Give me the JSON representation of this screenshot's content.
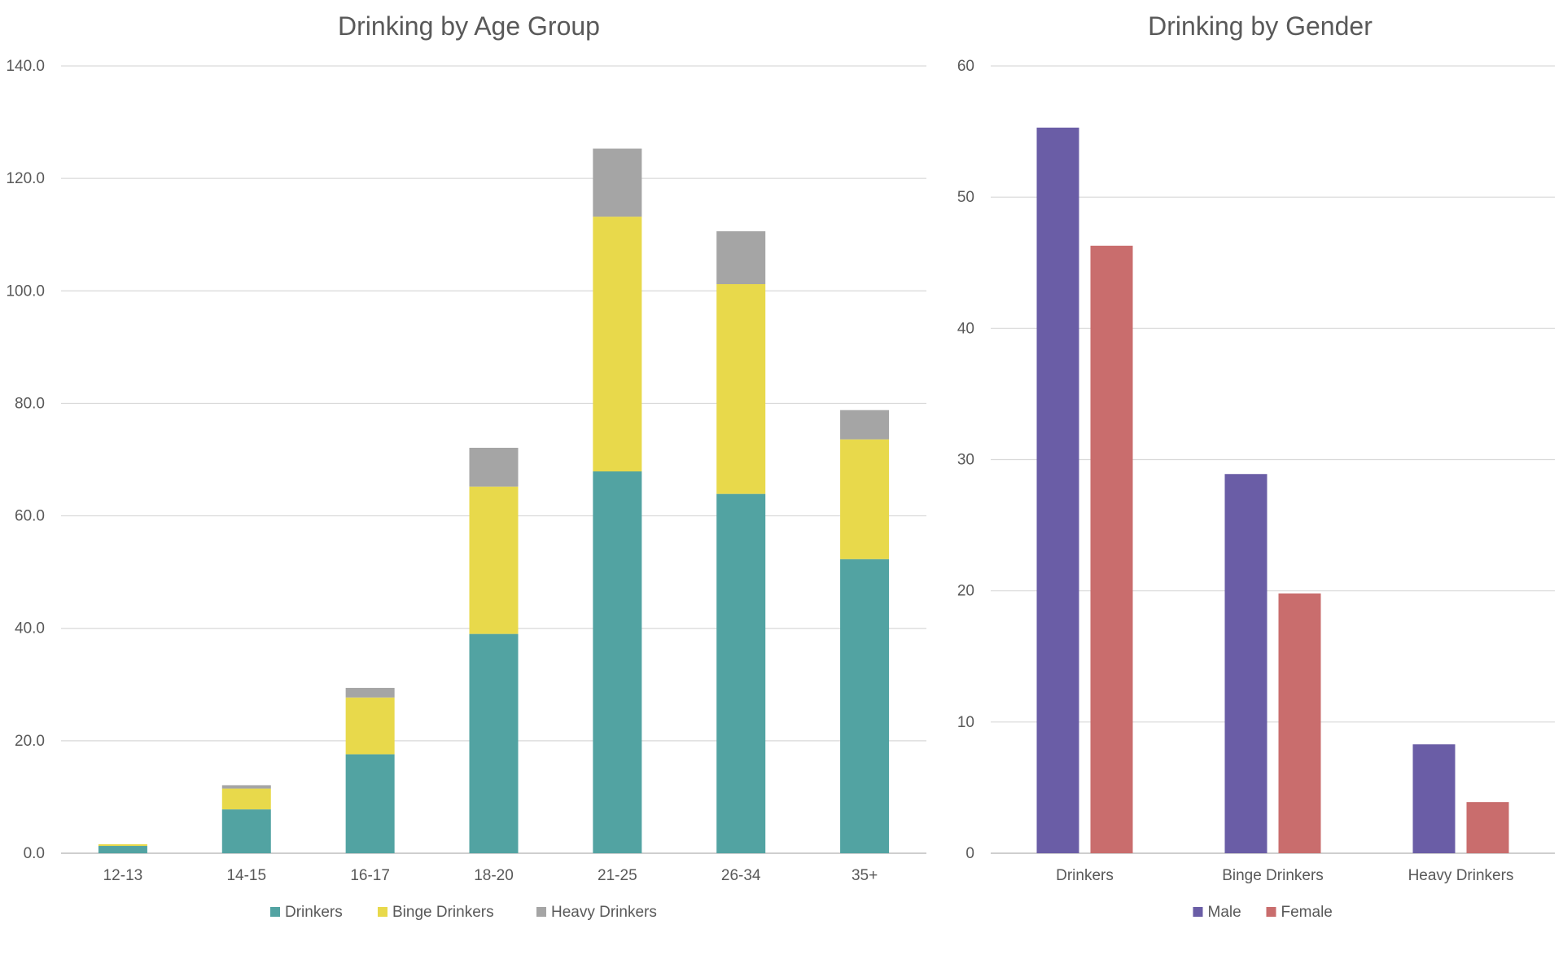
{
  "chart_data": [
    {
      "type": "bar",
      "stacked": true,
      "title": "Drinking by Age Group",
      "xlabel": "",
      "ylabel": "",
      "ylim": [
        0,
        140
      ],
      "y_ticks": [
        "0.0",
        "20.0",
        "40.0",
        "60.0",
        "80.0",
        "100.0",
        "120.0",
        "140.0"
      ],
      "categories": [
        "12-13",
        "14-15",
        "16-17",
        "18-20",
        "21-25",
        "26-34",
        "35+"
      ],
      "series": [
        {
          "name": "Drinkers",
          "color": "#52a3a2",
          "values": [
            1.3,
            7.8,
            17.6,
            39.0,
            67.9,
            63.9,
            52.3
          ]
        },
        {
          "name": "Binge Drinkers",
          "color": "#e8d94b",
          "values": [
            0.3,
            3.7,
            10.1,
            26.2,
            45.3,
            37.3,
            21.3
          ]
        },
        {
          "name": "Heavy Drinkers",
          "color": "#a5a5a5",
          "values": [
            0.0,
            0.6,
            1.7,
            6.9,
            12.1,
            9.4,
            5.2
          ]
        }
      ],
      "grid": true,
      "legend": "bottom"
    },
    {
      "type": "bar",
      "title": "Drinking by Gender",
      "xlabel": "",
      "ylabel": "",
      "ylim": [
        0,
        60
      ],
      "y_ticks": [
        "0",
        "10",
        "20",
        "30",
        "40",
        "50",
        "60"
      ],
      "categories": [
        "Drinkers",
        "Binge Drinkers",
        "Heavy Drinkers"
      ],
      "series": [
        {
          "name": "Male",
          "color": "#6a5da6",
          "values": [
            55.3,
            28.9,
            8.3
          ]
        },
        {
          "name": "Female",
          "color": "#c96d6d",
          "values": [
            46.3,
            19.8,
            3.9
          ]
        }
      ],
      "grid": true,
      "legend": "bottom"
    }
  ]
}
